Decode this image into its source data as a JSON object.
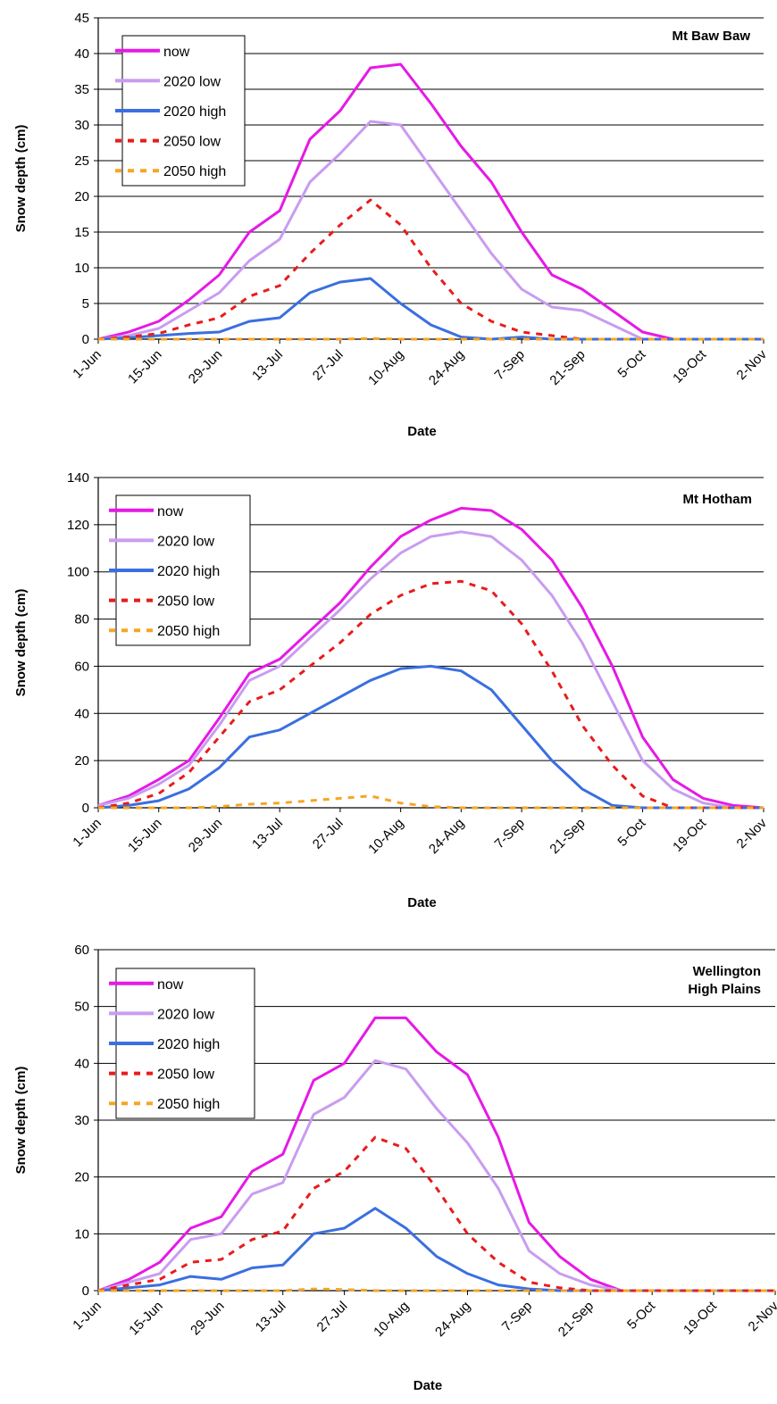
{
  "chart_data": [
    {
      "type": "line",
      "title": "Mt Baw Baw",
      "xlabel": "Date",
      "ylabel": "Snow depth (cm)",
      "ylim": [
        0,
        45
      ],
      "yticks": [
        0,
        5,
        10,
        15,
        20,
        25,
        30,
        35,
        40,
        45
      ],
      "xticks": [
        "1-Jun",
        "15-Jun",
        "29-Jun",
        "13-Jul",
        "27-Jul",
        "10-Aug",
        "24-Aug",
        "7-Sep",
        "21-Sep",
        "5-Oct",
        "19-Oct",
        "2-Nov"
      ],
      "x_unit": "day of season (0 = 1-Jun)",
      "xlim": [
        0,
        154
      ],
      "grid": "horizontal",
      "legend_position": "top-left",
      "series": [
        {
          "name": "now",
          "color": "#e619e6",
          "dash": "solid",
          "x": [
            0,
            7,
            14,
            21,
            28,
            35,
            42,
            49,
            56,
            63,
            70,
            77,
            84,
            91,
            98,
            105,
            112,
            119,
            126,
            133,
            140,
            147,
            154
          ],
          "y": [
            0,
            1,
            2.5,
            5.5,
            9,
            15,
            18,
            28,
            32,
            38,
            38.5,
            33,
            27,
            22,
            15,
            9,
            7,
            4,
            1,
            0,
            0,
            0,
            0
          ]
        },
        {
          "name": "2020 low",
          "color": "#c99cf0",
          "dash": "solid",
          "x": [
            0,
            7,
            14,
            21,
            28,
            35,
            42,
            49,
            56,
            63,
            70,
            77,
            84,
            91,
            98,
            105,
            112,
            119,
            126,
            133,
            140,
            147,
            154
          ],
          "y": [
            0,
            0.5,
            1.5,
            4,
            6.5,
            11,
            14,
            22,
            26,
            30.5,
            30,
            24,
            18,
            12,
            7,
            4.5,
            4,
            2,
            0,
            0,
            0,
            0,
            0
          ]
        },
        {
          "name": "2020 high",
          "color": "#3a6fe0",
          "dash": "solid",
          "x": [
            0,
            7,
            14,
            21,
            28,
            35,
            42,
            49,
            56,
            63,
            70,
            77,
            84,
            91,
            98,
            105,
            112,
            119,
            126,
            133,
            140,
            147,
            154
          ],
          "y": [
            0,
            0.2,
            0.5,
            0.8,
            1,
            2.5,
            3,
            6.5,
            8,
            8.5,
            5,
            2,
            0.3,
            0,
            0.3,
            0,
            0,
            0,
            0,
            0,
            0,
            0,
            0
          ]
        },
        {
          "name": "2050 low",
          "color": "#e81c1c",
          "dash": "dashed",
          "x": [
            0,
            7,
            14,
            21,
            28,
            35,
            42,
            49,
            56,
            63,
            70,
            77,
            84,
            91,
            98,
            105,
            112,
            119,
            126,
            133,
            140,
            147,
            154
          ],
          "y": [
            0,
            0.3,
            0.8,
            2,
            3,
            6,
            7.5,
            12,
            16,
            19.5,
            16,
            10,
            5,
            2.5,
            1,
            0.5,
            0,
            0,
            0,
            0,
            0,
            0,
            0
          ]
        },
        {
          "name": "2050 high",
          "color": "#f5a623",
          "dash": "dashed",
          "x": [
            0,
            7,
            14,
            21,
            28,
            35,
            42,
            49,
            56,
            63,
            70,
            77,
            84,
            91,
            98,
            105,
            112,
            119,
            126,
            133,
            140,
            147,
            154
          ],
          "y": [
            0,
            0,
            0,
            0,
            0,
            0,
            0,
            0,
            0,
            0.1,
            0,
            0,
            0,
            0,
            0,
            0,
            0,
            0,
            0,
            0,
            0,
            0,
            0
          ]
        }
      ]
    },
    {
      "type": "line",
      "title": "Mt Hotham",
      "xlabel": "Date",
      "ylabel": "Snow depth (cm)",
      "ylim": [
        0,
        140
      ],
      "yticks": [
        0,
        20,
        40,
        60,
        80,
        100,
        120,
        140
      ],
      "xticks": [
        "1-Jun",
        "15-Jun",
        "29-Jun",
        "13-Jul",
        "27-Jul",
        "10-Aug",
        "24-Aug",
        "7-Sep",
        "21-Sep",
        "5-Oct",
        "19-Oct",
        "2-Nov"
      ],
      "x_unit": "day of season (0 = 1-Jun)",
      "xlim": [
        0,
        154
      ],
      "grid": "horizontal",
      "legend_position": "top-left",
      "series": [
        {
          "name": "now",
          "color": "#e619e6",
          "dash": "solid",
          "x": [
            0,
            7,
            14,
            21,
            28,
            35,
            42,
            49,
            56,
            63,
            70,
            77,
            84,
            91,
            98,
            105,
            112,
            119,
            126,
            133,
            140,
            147,
            154
          ],
          "y": [
            1,
            5,
            12,
            20,
            38,
            57,
            63,
            75,
            87,
            102,
            115,
            122,
            127,
            126,
            118,
            105,
            85,
            60,
            30,
            12,
            4,
            1,
            0
          ]
        },
        {
          "name": "2020 low",
          "color": "#c99cf0",
          "dash": "solid",
          "x": [
            0,
            7,
            14,
            21,
            28,
            35,
            42,
            49,
            56,
            63,
            70,
            77,
            84,
            91,
            98,
            105,
            112,
            119,
            126,
            133,
            140,
            147,
            154
          ],
          "y": [
            1,
            4,
            10,
            18,
            35,
            54,
            60,
            72,
            84,
            97,
            108,
            115,
            117,
            115,
            105,
            90,
            70,
            45,
            20,
            8,
            2,
            0,
            0
          ]
        },
        {
          "name": "2020 high",
          "color": "#3a6fe0",
          "dash": "solid",
          "x": [
            0,
            7,
            14,
            21,
            28,
            35,
            42,
            49,
            56,
            63,
            70,
            77,
            84,
            91,
            98,
            105,
            112,
            119,
            126,
            133,
            140,
            147,
            154
          ],
          "y": [
            0,
            1,
            3,
            8,
            17,
            30,
            33,
            40,
            47,
            54,
            59,
            60,
            58,
            50,
            35,
            20,
            8,
            1,
            0,
            0,
            0,
            0,
            0
          ]
        },
        {
          "name": "2050 low",
          "color": "#e81c1c",
          "dash": "dashed",
          "x": [
            0,
            7,
            14,
            21,
            28,
            35,
            42,
            49,
            56,
            63,
            70,
            77,
            84,
            91,
            98,
            105,
            112,
            119,
            126,
            133,
            140,
            147,
            154
          ],
          "y": [
            0,
            2,
            6,
            15,
            30,
            45,
            50,
            60,
            70,
            82,
            90,
            95,
            96,
            92,
            78,
            58,
            35,
            18,
            5,
            0,
            0,
            0,
            0
          ]
        },
        {
          "name": "2050 high",
          "color": "#f5a623",
          "dash": "dashed",
          "x": [
            0,
            7,
            14,
            21,
            28,
            35,
            42,
            49,
            56,
            63,
            70,
            77,
            84,
            91,
            98,
            105,
            112,
            119,
            126,
            133,
            140,
            147,
            154
          ],
          "y": [
            0,
            0,
            0,
            0,
            0.5,
            1.5,
            2,
            3,
            4,
            5,
            2,
            0.5,
            0,
            0,
            0,
            0,
            0,
            0,
            0,
            0,
            0,
            0,
            0
          ]
        }
      ]
    },
    {
      "type": "line",
      "title": "Wellington\nHigh Plains",
      "xlabel": "Date",
      "ylabel": "Snow depth (cm)",
      "ylim": [
        0,
        60
      ],
      "yticks": [
        0,
        10,
        20,
        30,
        40,
        50,
        60
      ],
      "xticks": [
        "1-Jun",
        "15-Jun",
        "29-Jun",
        "13-Jul",
        "27-Jul",
        "10-Aug",
        "24-Aug",
        "7-Sep",
        "21-Sep",
        "5-Oct",
        "19-Oct",
        "2-Nov"
      ],
      "x_unit": "day of season (0 = 1-Jun)",
      "xlim": [
        0,
        154
      ],
      "grid": "horizontal",
      "legend_position": "top-left",
      "series": [
        {
          "name": "now",
          "color": "#e619e6",
          "dash": "solid",
          "x": [
            0,
            7,
            14,
            21,
            28,
            35,
            42,
            49,
            56,
            63,
            70,
            77,
            84,
            91,
            98,
            105,
            112,
            119,
            126,
            133,
            140,
            147,
            154
          ],
          "y": [
            0,
            2,
            5,
            11,
            13,
            21,
            24,
            37,
            40,
            48,
            48,
            42,
            38,
            27,
            12,
            6,
            2,
            0,
            0,
            0,
            0,
            0,
            0
          ]
        },
        {
          "name": "2020 low",
          "color": "#c99cf0",
          "dash": "solid",
          "x": [
            0,
            7,
            14,
            21,
            28,
            35,
            42,
            49,
            56,
            63,
            70,
            77,
            84,
            91,
            98,
            105,
            112,
            119,
            126,
            133,
            140,
            147,
            154
          ],
          "y": [
            0,
            1.5,
            3,
            9,
            10,
            17,
            19,
            31,
            34,
            40.5,
            39,
            32,
            26,
            18,
            7,
            3,
            1,
            0,
            0,
            0,
            0,
            0,
            0
          ]
        },
        {
          "name": "2020 high",
          "color": "#3a6fe0",
          "dash": "solid",
          "x": [
            0,
            7,
            14,
            21,
            28,
            35,
            42,
            49,
            56,
            63,
            70,
            77,
            84,
            91,
            98,
            105,
            112,
            119,
            126,
            133,
            140,
            147,
            154
          ],
          "y": [
            0,
            0.5,
            1,
            2.5,
            2,
            4,
            4.5,
            10,
            11,
            14.5,
            11,
            6,
            3,
            1,
            0.3,
            0,
            0,
            0,
            0,
            0,
            0,
            0,
            0
          ]
        },
        {
          "name": "2050 low",
          "color": "#e81c1c",
          "dash": "dashed",
          "x": [
            0,
            7,
            14,
            21,
            28,
            35,
            42,
            49,
            56,
            63,
            70,
            77,
            84,
            91,
            98,
            105,
            112,
            119,
            126,
            133,
            140,
            147,
            154
          ],
          "y": [
            0,
            1,
            2,
            5,
            5.5,
            9,
            10.5,
            18,
            21,
            27,
            25,
            18,
            10,
            5,
            1.5,
            0.5,
            0,
            0,
            0,
            0,
            0,
            0,
            0
          ]
        },
        {
          "name": "2050 high",
          "color": "#f5a623",
          "dash": "dashed",
          "x": [
            0,
            7,
            14,
            21,
            28,
            35,
            42,
            49,
            56,
            63,
            70,
            77,
            84,
            91,
            98,
            105,
            112,
            119,
            126,
            133,
            140,
            147,
            154
          ],
          "y": [
            0,
            0,
            0,
            0,
            0,
            0,
            0,
            0.3,
            0.2,
            0,
            0,
            0,
            0,
            0,
            0,
            0,
            0,
            0,
            0,
            0,
            0,
            0,
            0
          ]
        }
      ]
    }
  ]
}
